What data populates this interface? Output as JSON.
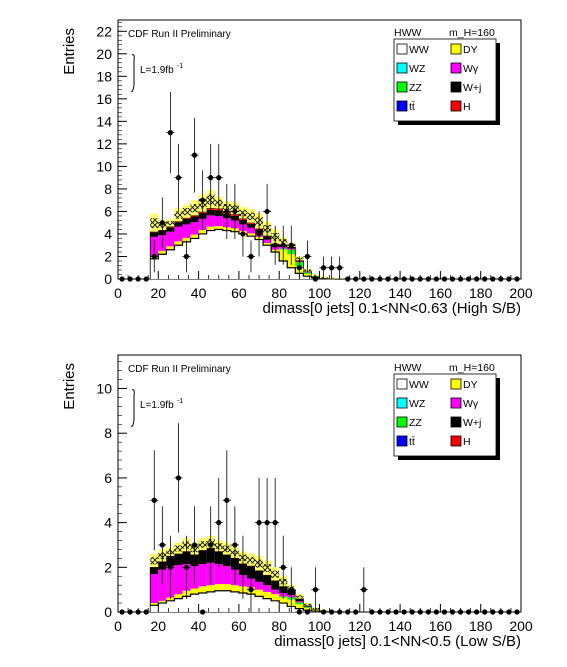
{
  "chart_data": [
    {
      "type": "histogram",
      "ylabel": "Entries",
      "xlabel": "dimass[0 jets] 0.1<NN<0.63 (High S/B)",
      "header": "CDF Run II Preliminary",
      "lumi": "L=1.9fb",
      "lumi_sup": "-1",
      "legend_titles": [
        "HWW",
        "m_H=160"
      ],
      "xlim": [
        0,
        200
      ],
      "ylim": [
        0,
        23
      ],
      "xticks": [
        0,
        20,
        40,
        60,
        80,
        100,
        120,
        140,
        160,
        180,
        200
      ],
      "yticks": [
        0,
        2,
        4,
        6,
        8,
        10,
        12,
        14,
        16,
        18,
        20,
        22
      ],
      "bin_width": 4,
      "x": [
        18,
        22,
        26,
        30,
        34,
        38,
        42,
        46,
        50,
        54,
        58,
        62,
        66,
        70,
        74,
        78,
        82,
        86,
        90,
        94,
        98,
        102,
        106,
        110
      ],
      "series": [
        {
          "name": "WW",
          "color": "#ffffff",
          "values": [
            1.8,
            2.2,
            2.6,
            3.0,
            3.3,
            3.6,
            4.0,
            4.3,
            4.4,
            4.3,
            4.2,
            4.0,
            3.8,
            3.5,
            3.0,
            2.4,
            1.6,
            1.0,
            0.5,
            0.25,
            0.12,
            0.05,
            0.02,
            0.0
          ]
        },
        {
          "name": "DY",
          "color": "#ffff00",
          "values": [
            0.25,
            0.3,
            0.3,
            0.35,
            0.35,
            0.35,
            0.35,
            0.35,
            0.3,
            0.3,
            0.3,
            0.25,
            0.25,
            0.25,
            0.2,
            0.2,
            1.0,
            1.2,
            0.6,
            0.2,
            0.08,
            0.02,
            0,
            0
          ]
        },
        {
          "name": "ZZ",
          "color": "#00ff00",
          "values": [
            0,
            0,
            0,
            0,
            0,
            0,
            0,
            0,
            0,
            0,
            0,
            0,
            0,
            0,
            0,
            0,
            0.1,
            0.4,
            0.4,
            0.15,
            0.05,
            0,
            0,
            0
          ]
        },
        {
          "name": "Wγ",
          "color": "#ff00ff",
          "values": [
            1.7,
            1.4,
            1.3,
            1.3,
            1.2,
            1.1,
            1.0,
            1.0,
            0.9,
            0.8,
            0.7,
            0.6,
            0.5,
            0.35,
            0.3,
            0.25,
            0.15,
            0.1,
            0.05,
            0.02,
            0,
            0,
            0,
            0
          ]
        },
        {
          "name": "W+j",
          "color": "#000000",
          "values": [
            0.4,
            0.4,
            0.4,
            0.4,
            0.5,
            0.5,
            0.5,
            0.5,
            0.5,
            0.4,
            0.4,
            0.4,
            0.35,
            0.3,
            0.3,
            0.25,
            0.2,
            0.15,
            0.1,
            0.05,
            0.02,
            0,
            0,
            0
          ]
        },
        {
          "name": "H",
          "color": "#ff0000",
          "values": [
            0.05,
            0.05,
            0.06,
            0.07,
            0.08,
            0.1,
            0.12,
            0.14,
            0.16,
            0.16,
            0.15,
            0.12,
            0.1,
            0.07,
            0.05,
            0.03,
            0.02,
            0.01,
            0,
            0,
            0,
            0,
            0,
            0
          ]
        }
      ],
      "legend_extra": [
        {
          "name": "WZ",
          "color": "#00ffff"
        },
        {
          "name": "tt̄",
          "color": "#0000ff"
        }
      ],
      "signal_band": [
        5.8,
        5.2,
        5.3,
        6.3,
        6.6,
        7.0,
        7.5,
        7.9,
        7.3,
        6.9,
        6.8,
        6.4,
        6.2,
        5.8,
        5.1,
        4.4,
        3.7,
        3.2,
        2.0,
        0.9,
        0.4,
        0.2,
        0.1,
        0.05
      ],
      "data_points": [
        [
          2,
          0
        ],
        [
          6,
          0
        ],
        [
          10,
          0
        ],
        [
          14,
          0
        ],
        [
          18,
          2
        ],
        [
          22,
          5
        ],
        [
          26,
          13
        ],
        [
          30,
          9
        ],
        [
          34,
          2
        ],
        [
          38,
          11
        ],
        [
          42,
          7
        ],
        [
          46,
          9
        ],
        [
          50,
          9
        ],
        [
          54,
          6
        ],
        [
          58,
          6
        ],
        [
          62,
          4
        ],
        [
          66,
          2
        ],
        [
          70,
          4
        ],
        [
          74,
          6
        ],
        [
          78,
          3
        ],
        [
          82,
          3
        ],
        [
          86,
          3
        ],
        [
          90,
          1
        ],
        [
          94,
          2
        ],
        [
          98,
          0
        ],
        [
          102,
          1
        ],
        [
          106,
          1
        ],
        [
          110,
          1
        ],
        [
          114,
          0
        ],
        [
          118,
          0
        ],
        [
          122,
          0
        ],
        [
          126,
          0
        ],
        [
          130,
          0
        ],
        [
          134,
          0
        ],
        [
          138,
          0
        ],
        [
          142,
          0
        ],
        [
          146,
          0
        ],
        [
          150,
          0
        ],
        [
          154,
          0
        ],
        [
          158,
          0
        ],
        [
          162,
          0
        ],
        [
          166,
          0
        ],
        [
          170,
          0
        ],
        [
          174,
          0
        ],
        [
          178,
          0
        ],
        [
          182,
          0
        ],
        [
          186,
          0
        ],
        [
          190,
          0
        ],
        [
          194,
          0
        ],
        [
          198,
          0
        ]
      ]
    },
    {
      "type": "histogram",
      "ylabel": "Entries",
      "xlabel": "dimass[0 jets] 0.1<NN<0.5 (Low S/B)",
      "header": "CDF Run II Preliminary",
      "lumi": "L=1.9fb",
      "lumi_sup": "-1",
      "legend_titles": [
        "HWW",
        "m_H=160"
      ],
      "xlim": [
        0,
        200
      ],
      "ylim": [
        0,
        11.5
      ],
      "xticks": [
        0,
        20,
        40,
        60,
        80,
        100,
        120,
        140,
        160,
        180,
        200
      ],
      "yticks": [
        0,
        2,
        4,
        6,
        8,
        10
      ],
      "bin_width": 4,
      "x": [
        18,
        22,
        26,
        30,
        34,
        38,
        42,
        46,
        50,
        54,
        58,
        62,
        66,
        70,
        74,
        78,
        82,
        86,
        90,
        94,
        98,
        102,
        106,
        110
      ],
      "series": [
        {
          "name": "WW",
          "color": "#ffffff",
          "values": [
            0.3,
            0.4,
            0.5,
            0.6,
            0.7,
            0.8,
            0.85,
            0.9,
            0.95,
            0.95,
            0.9,
            0.85,
            0.8,
            0.7,
            0.6,
            0.5,
            0.4,
            0.25,
            0.15,
            0.08,
            0.04,
            0.02,
            0.01,
            0
          ]
        },
        {
          "name": "DY",
          "color": "#ffff00",
          "values": [
            0.1,
            0.1,
            0.15,
            0.2,
            0.25,
            0.25,
            0.3,
            0.3,
            0.3,
            0.3,
            0.3,
            0.3,
            0.3,
            0.3,
            0.3,
            0.3,
            0.25,
            0.3,
            0.2,
            0.1,
            0.05,
            0.02,
            0,
            0
          ]
        },
        {
          "name": "ZZ",
          "color": "#00ff00",
          "values": [
            0,
            0,
            0,
            0,
            0,
            0,
            0,
            0,
            0,
            0,
            0,
            0,
            0,
            0,
            0,
            0,
            0.05,
            0.1,
            0.08,
            0.04,
            0,
            0,
            0,
            0
          ]
        },
        {
          "name": "Wγ",
          "color": "#ff00ff",
          "values": [
            1.3,
            1.4,
            1.4,
            1.3,
            1.2,
            1.0,
            1.0,
            1.0,
            0.9,
            0.8,
            0.7,
            0.5,
            0.4,
            0.35,
            0.3,
            0.2,
            0.15,
            0.1,
            0.05,
            0.02,
            0,
            0,
            0,
            0
          ]
        },
        {
          "name": "W+j",
          "color": "#000000",
          "values": [
            0.3,
            0.35,
            0.45,
            0.5,
            0.55,
            0.5,
            0.6,
            0.65,
            0.55,
            0.5,
            0.5,
            0.5,
            0.55,
            0.5,
            0.45,
            0.4,
            0.3,
            0.25,
            0.12,
            0.05,
            0.02,
            0,
            0,
            0
          ]
        },
        {
          "name": "H",
          "color": "#ff0000",
          "values": [
            0.01,
            0.01,
            0.01,
            0.01,
            0.02,
            0.02,
            0.02,
            0.02,
            0.02,
            0.02,
            0.02,
            0.02,
            0.02,
            0.01,
            0.01,
            0.01,
            0,
            0,
            0,
            0,
            0,
            0,
            0,
            0
          ]
        }
      ],
      "legend_extra": [
        {
          "name": "WZ",
          "color": "#00ffff"
        },
        {
          "name": "tt̄",
          "color": "#0000ff"
        }
      ],
      "signal_band": [
        2.6,
        2.8,
        2.9,
        3.1,
        3.3,
        3.1,
        3.3,
        3.4,
        3.2,
        3.1,
        2.9,
        2.7,
        2.6,
        2.5,
        2.3,
        2.0,
        1.6,
        1.2,
        0.8,
        0.4,
        0.2,
        0.1,
        0.05,
        0
      ],
      "data_points": [
        [
          2,
          0
        ],
        [
          6,
          0
        ],
        [
          10,
          0
        ],
        [
          14,
          0
        ],
        [
          18,
          5
        ],
        [
          22,
          3
        ],
        [
          26,
          2
        ],
        [
          30,
          6
        ],
        [
          34,
          2
        ],
        [
          38,
          3
        ],
        [
          42,
          0
        ],
        [
          46,
          3
        ],
        [
          50,
          4
        ],
        [
          54,
          5
        ],
        [
          58,
          3
        ],
        [
          62,
          2
        ],
        [
          66,
          1
        ],
        [
          70,
          4
        ],
        [
          74,
          4
        ],
        [
          78,
          4
        ],
        [
          82,
          2
        ],
        [
          86,
          1
        ],
        [
          90,
          0
        ],
        [
          94,
          0
        ],
        [
          98,
          1
        ],
        [
          102,
          0
        ],
        [
          106,
          0
        ],
        [
          110,
          0
        ],
        [
          114,
          0
        ],
        [
          118,
          0
        ],
        [
          122,
          1
        ],
        [
          126,
          0
        ],
        [
          130,
          0
        ],
        [
          134,
          0
        ],
        [
          138,
          0
        ],
        [
          142,
          0
        ],
        [
          146,
          0
        ],
        [
          150,
          0
        ],
        [
          154,
          0
        ],
        [
          158,
          0
        ],
        [
          162,
          0
        ],
        [
          166,
          0
        ],
        [
          170,
          0
        ],
        [
          174,
          0
        ],
        [
          178,
          0
        ],
        [
          182,
          0
        ],
        [
          186,
          0
        ],
        [
          190,
          0
        ],
        [
          194,
          0
        ],
        [
          198,
          0
        ]
      ]
    }
  ]
}
